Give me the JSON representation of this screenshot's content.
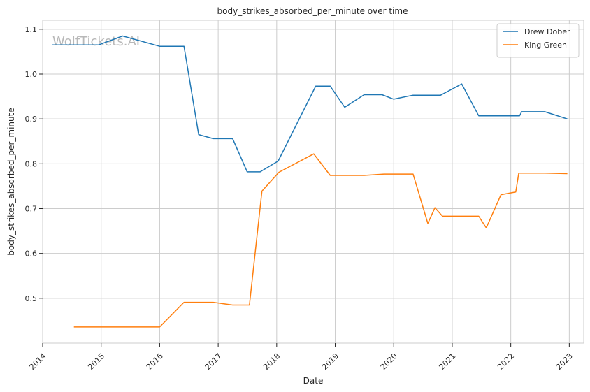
{
  "chart_data": {
    "type": "line",
    "title": "body_strikes_absorbed_per_minute over time",
    "xlabel": "Date",
    "ylabel": "body_strikes_absorbed_per_minute",
    "watermark": "WolfTickets.AI",
    "xlim": [
      "2014-01-01",
      "2023-04-01"
    ],
    "ylim": [
      0.4,
      1.12
    ],
    "x_ticks": [
      "2014",
      "2015",
      "2016",
      "2017",
      "2018",
      "2019",
      "2020",
      "2021",
      "2022",
      "2023"
    ],
    "y_ticks": [
      "0.5",
      "0.6",
      "0.7",
      "0.8",
      "0.9",
      "1.0",
      "1.1"
    ],
    "grid": true,
    "legend_position": "top-right",
    "series": [
      {
        "name": "Drew Dober",
        "color": "#1f77b4",
        "points": [
          [
            "2014-03-01",
            1.065
          ],
          [
            "2014-12-15",
            1.065
          ],
          [
            "2015-05-15",
            1.085
          ],
          [
            "2016-01-01",
            1.062
          ],
          [
            "2016-06-01",
            1.062
          ],
          [
            "2016-09-01",
            0.865
          ],
          [
            "2016-12-01",
            0.856
          ],
          [
            "2017-04-01",
            0.856
          ],
          [
            "2017-07-01",
            0.782
          ],
          [
            "2017-09-20",
            0.782
          ],
          [
            "2018-01-10",
            0.806
          ],
          [
            "2018-09-01",
            0.973
          ],
          [
            "2018-12-01",
            0.973
          ],
          [
            "2019-03-01",
            0.926
          ],
          [
            "2019-07-01",
            0.954
          ],
          [
            "2019-10-20",
            0.954
          ],
          [
            "2020-01-01",
            0.944
          ],
          [
            "2020-05-01",
            0.953
          ],
          [
            "2020-10-20",
            0.953
          ],
          [
            "2021-03-01",
            0.978
          ],
          [
            "2021-06-15",
            0.907
          ],
          [
            "2021-12-25",
            0.907
          ],
          [
            "2022-02-25",
            0.907
          ],
          [
            "2022-03-10",
            0.916
          ],
          [
            "2022-08-01",
            0.916
          ],
          [
            "2022-12-20",
            0.9
          ]
        ]
      },
      {
        "name": "King Green",
        "color": "#ff7f0e",
        "points": [
          [
            "2014-07-15",
            0.436
          ],
          [
            "2015-05-01",
            0.436
          ],
          [
            "2016-01-01",
            0.436
          ],
          [
            "2016-06-01",
            0.491
          ],
          [
            "2016-12-01",
            0.491
          ],
          [
            "2017-04-01",
            0.485
          ],
          [
            "2017-07-15",
            0.485
          ],
          [
            "2017-10-01",
            0.739
          ],
          [
            "2018-01-15",
            0.781
          ],
          [
            "2018-08-20",
            0.822
          ],
          [
            "2018-12-01",
            0.774
          ],
          [
            "2019-07-01",
            0.774
          ],
          [
            "2019-11-01",
            0.777
          ],
          [
            "2020-05-01",
            0.777
          ],
          [
            "2020-08-01",
            0.667
          ],
          [
            "2020-09-15",
            0.702
          ],
          [
            "2020-11-01",
            0.683
          ],
          [
            "2021-06-15",
            0.683
          ],
          [
            "2021-08-01",
            0.657
          ],
          [
            "2021-11-01",
            0.731
          ],
          [
            "2022-02-01",
            0.737
          ],
          [
            "2022-02-20",
            0.779
          ],
          [
            "2022-08-01",
            0.779
          ],
          [
            "2022-12-20",
            0.778
          ]
        ]
      }
    ]
  }
}
